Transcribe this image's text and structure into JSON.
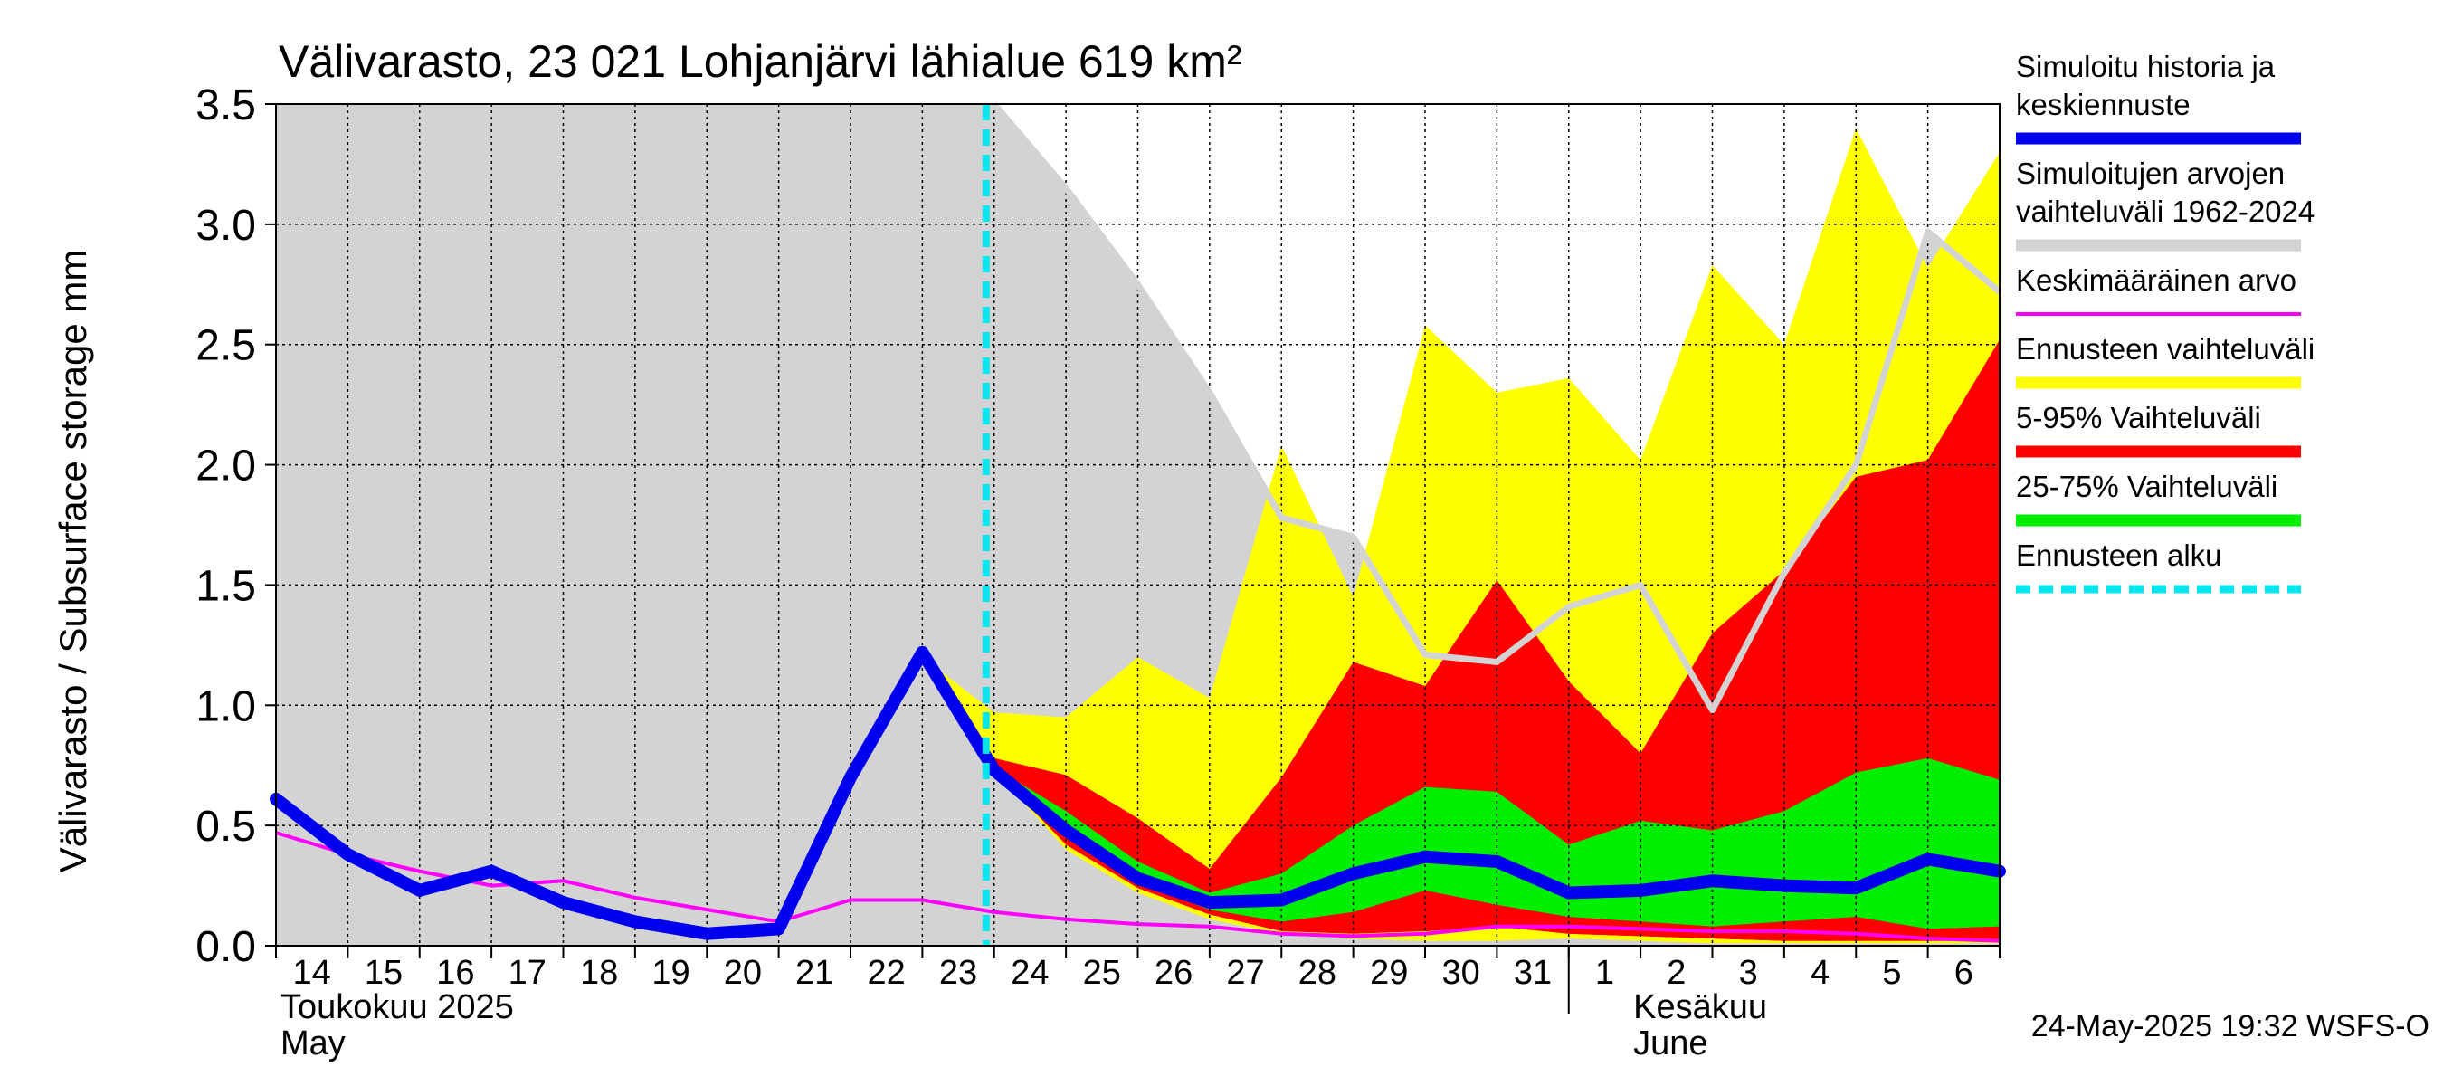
{
  "chart_data": {
    "type": "area",
    "title": "Välivarasto, 23 021 Lohjanjärvi lähialue 619 km²",
    "ylabel": "Välivarasto / Subsurface storage  mm",
    "ylim": [
      0,
      3.5
    ],
    "yticks": [
      "0.0",
      "0.5",
      "1.0",
      "1.5",
      "2.0",
      "2.5",
      "3.0",
      "3.5"
    ],
    "x": [
      "14",
      "15",
      "16",
      "17",
      "18",
      "19",
      "20",
      "21",
      "22",
      "23",
      "24",
      "25",
      "26",
      "27",
      "28",
      "29",
      "30",
      "31",
      "1",
      "2",
      "3",
      "4",
      "5",
      "6",
      "7"
    ],
    "xtick_labels": [
      "14",
      "15",
      "16",
      "17",
      "18",
      "19",
      "20",
      "21",
      "22",
      "23",
      "24",
      "25",
      "26",
      "27",
      "28",
      "29",
      "30",
      "31",
      "1",
      "2",
      "3",
      "4",
      "5",
      "6"
    ],
    "month_labels": [
      {
        "fi": "Toukokuu  2025",
        "en": "May"
      },
      {
        "fi": "Kesäkuu",
        "en": "June"
      }
    ],
    "forecast_start": "24",
    "grid": true,
    "legend_position": "right",
    "footer": "24-May-2025 19:32 WSFS-O",
    "series": [
      {
        "name": "Simuloitu historia ja keskiennuste",
        "color": "#0000ee",
        "values": [
          0.61,
          0.38,
          0.23,
          0.31,
          0.18,
          0.1,
          0.05,
          0.07,
          0.7,
          1.22,
          0.73,
          0.48,
          0.28,
          0.18,
          0.19,
          0.3,
          0.37,
          0.35,
          0.22,
          0.23,
          0.27,
          0.25,
          0.24,
          0.36,
          0.31
        ]
      },
      {
        "name": "Simuloitujen arvojen vaihteluväli 1962-2024",
        "color": "#d3d3d3",
        "upper": [
          3.5,
          3.5,
          3.5,
          3.5,
          3.5,
          3.5,
          3.5,
          3.5,
          3.5,
          3.5,
          3.5,
          3.15,
          2.75,
          2.3,
          1.78,
          1.7,
          1.21,
          1.18,
          1.41,
          1.5,
          0.98,
          1.55,
          2.0,
          2.97,
          2.72
        ],
        "lower": [
          0,
          0,
          0,
          0,
          0,
          0,
          0,
          0,
          0,
          0,
          0,
          0,
          0,
          0,
          0,
          0,
          0,
          0,
          0,
          0,
          0,
          0,
          0,
          0,
          0
        ]
      },
      {
        "name": "Keskimääräinen arvo",
        "color": "#ff00ff",
        "values": [
          0.47,
          0.38,
          0.31,
          0.25,
          0.27,
          0.2,
          0.15,
          0.1,
          0.19,
          0.19,
          0.14,
          0.11,
          0.09,
          0.08,
          0.05,
          0.04,
          0.05,
          0.08,
          0.08,
          0.07,
          0.06,
          0.06,
          0.05,
          0.03,
          0.02
        ]
      },
      {
        "name": "Ennusteen vaihteluväli",
        "color": "#ffff00",
        "upper": [
          null,
          null,
          null,
          null,
          null,
          null,
          null,
          null,
          null,
          1.2,
          0.97,
          0.95,
          1.2,
          1.03,
          2.08,
          1.45,
          2.58,
          2.3,
          2.36,
          2.02,
          2.83,
          2.5,
          3.4,
          2.82,
          3.3
        ],
        "lower": [
          null,
          null,
          null,
          null,
          null,
          null,
          null,
          null,
          null,
          1.2,
          0.73,
          0.4,
          0.22,
          0.11,
          0.05,
          0.03,
          0.02,
          0.02,
          0.03,
          0.02,
          0.01,
          0.01,
          0.01,
          0.01,
          0.01
        ]
      },
      {
        "name": "5-95% Vaihteluväli",
        "color": "#ff0000",
        "upper": [
          null,
          null,
          null,
          null,
          null,
          null,
          null,
          null,
          null,
          null,
          0.78,
          0.71,
          0.53,
          0.32,
          0.7,
          1.18,
          1.08,
          1.52,
          1.1,
          0.8,
          1.3,
          1.56,
          1.95,
          2.02,
          2.52
        ],
        "lower": [
          null,
          null,
          null,
          null,
          null,
          null,
          null,
          null,
          null,
          null,
          0.73,
          0.42,
          0.24,
          0.13,
          0.06,
          0.05,
          0.06,
          0.08,
          0.05,
          0.04,
          0.03,
          0.02,
          0.02,
          0.02,
          0.02
        ]
      },
      {
        "name": "25-75% Vaihteluväli",
        "color": "#00ee00",
        "upper": [
          null,
          null,
          null,
          null,
          null,
          null,
          null,
          null,
          null,
          null,
          0.74,
          0.56,
          0.35,
          0.22,
          0.3,
          0.5,
          0.66,
          0.64,
          0.42,
          0.52,
          0.48,
          0.56,
          0.72,
          0.78,
          0.69
        ],
        "lower": [
          null,
          null,
          null,
          null,
          null,
          null,
          null,
          null,
          null,
          null,
          0.73,
          0.46,
          0.26,
          0.15,
          0.1,
          0.14,
          0.23,
          0.17,
          0.12,
          0.1,
          0.08,
          0.1,
          0.12,
          0.07,
          0.08
        ]
      }
    ],
    "red_lower_band": {
      "upper": [
        null,
        null,
        null,
        null,
        null,
        null,
        null,
        null,
        null,
        null,
        null,
        null,
        null,
        null,
        null,
        null,
        0.23,
        0.17,
        0.12,
        0.1,
        0.08,
        0.1,
        0.12,
        0.07,
        0.08
      ],
      "lower": [
        null,
        null,
        null,
        null,
        null,
        null,
        null,
        null,
        null,
        null,
        null,
        null,
        null,
        null,
        null,
        null,
        0.06,
        0.08,
        0.05,
        0.04,
        0.03,
        0.02,
        0.02,
        0.02,
        0.02
      ]
    },
    "legend": [
      {
        "label": [
          "Simuloitu historia ja",
          "keskiennuste"
        ],
        "color": "#0000ee",
        "style": "thick"
      },
      {
        "label": [
          "Simuloitujen arvojen",
          "vaihteluväli 1962-2024"
        ],
        "color": "#d3d3d3",
        "style": "thick"
      },
      {
        "label": [
          "Keskimääräinen arvo"
        ],
        "color": "#ff00ff",
        "style": "thin"
      },
      {
        "label": [
          "Ennusteen vaihteluväli"
        ],
        "color": "#ffff00",
        "style": "thick"
      },
      {
        "label": [
          "5-95% Vaihteluväli"
        ],
        "color": "#ff0000",
        "style": "thick"
      },
      {
        "label": [
          "25-75% Vaihteluväli"
        ],
        "color": "#00ee00",
        "style": "thick"
      },
      {
        "label": [
          "Ennusteen alku"
        ],
        "color": "#00e5ee",
        "style": "dashed"
      }
    ]
  }
}
